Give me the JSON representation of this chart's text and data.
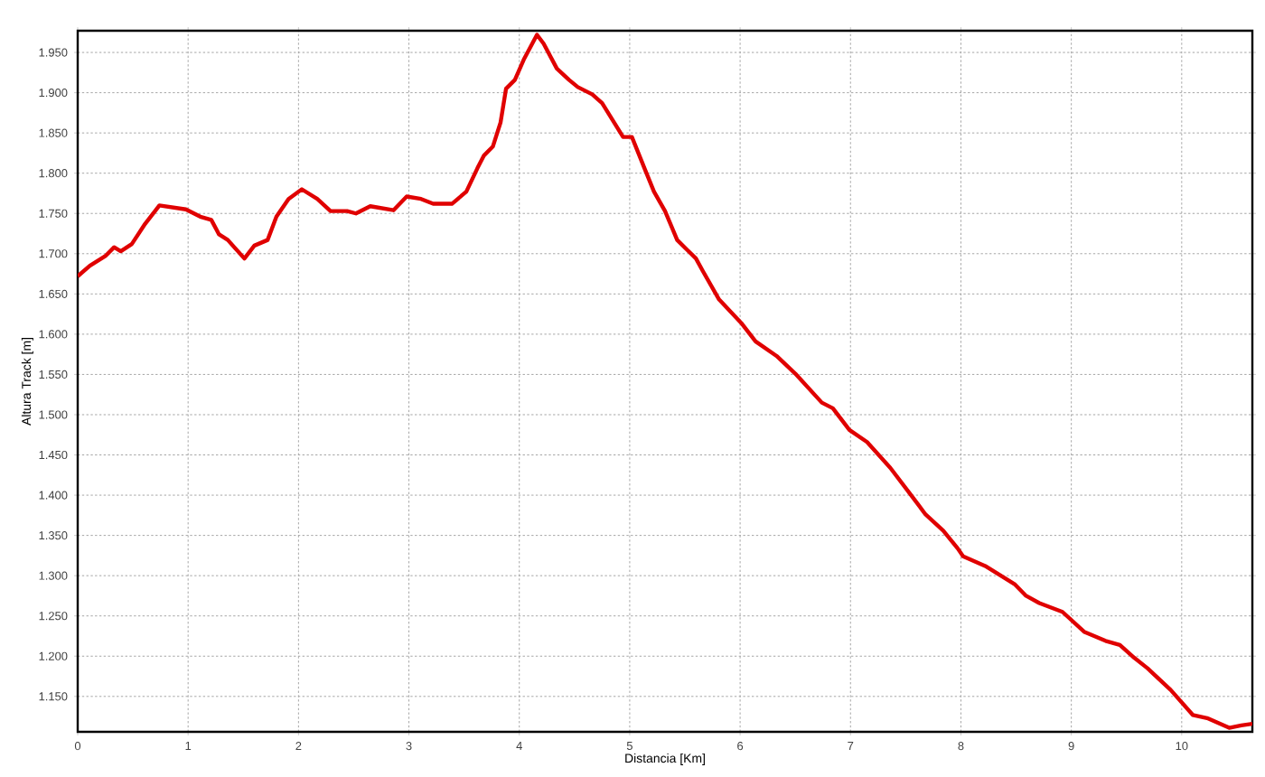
{
  "chart_data": {
    "type": "line",
    "xlabel": "Distancia [Km]",
    "ylabel": "Altura Track [m]",
    "color": "#e00000",
    "grid": true,
    "line_style": "solid",
    "xlim": [
      0,
      10.64
    ],
    "ylim": [
      1106,
      1977
    ],
    "xticks": [
      0,
      1,
      2,
      3,
      4,
      5,
      6,
      7,
      8,
      9,
      10
    ],
    "yticks": [
      {
        "value": 1150,
        "label": "1.150"
      },
      {
        "value": 1200,
        "label": "1.200"
      },
      {
        "value": 1250,
        "label": "1.250"
      },
      {
        "value": 1300,
        "label": "1.300"
      },
      {
        "value": 1350,
        "label": "1.350"
      },
      {
        "value": 1400,
        "label": "1.400"
      },
      {
        "value": 1450,
        "label": "1.450"
      },
      {
        "value": 1500,
        "label": "1.500"
      },
      {
        "value": 1550,
        "label": "1.550"
      },
      {
        "value": 1600,
        "label": "1.600"
      },
      {
        "value": 1650,
        "label": "1.650"
      },
      {
        "value": 1700,
        "label": "1.700"
      },
      {
        "value": 1750,
        "label": "1.750"
      },
      {
        "value": 1800,
        "label": "1.800"
      },
      {
        "value": 1850,
        "label": "1.850"
      },
      {
        "value": 1900,
        "label": "1.900"
      },
      {
        "value": 1950,
        "label": "1.950"
      }
    ],
    "x": [
      0,
      0.11,
      0.25,
      0.33,
      0.39,
      0.49,
      0.61,
      0.74,
      0.98,
      1.11,
      1.21,
      1.28,
      1.36,
      1.51,
      1.6,
      1.72,
      1.8,
      1.91,
      2.03,
      2.17,
      2.29,
      2.44,
      2.52,
      2.65,
      2.86,
      2.98,
      3.11,
      3.22,
      3.39,
      3.52,
      3.62,
      3.68,
      3.76,
      3.83,
      3.88,
      3.96,
      4.04,
      4.16,
      4.22,
      4.34,
      4.45,
      4.53,
      4.66,
      4.75,
      4.94,
      5.02,
      5.14,
      5.22,
      5.32,
      5.43,
      5.6,
      5.66,
      5.81,
      6.01,
      6.14,
      6.33,
      6.5,
      6.74,
      6.84,
      6.99,
      7.15,
      7.36,
      7.56,
      7.68,
      7.84,
      7.97,
      8.02,
      8.22,
      8.49,
      8.59,
      8.71,
      8.92,
      9.12,
      9.31,
      9.44,
      9.57,
      9.69,
      9.9,
      10.1,
      10.23,
      10.43,
      10.54,
      10.64
    ],
    "values": [
      1672,
      1685,
      1697,
      1708,
      1703,
      1712,
      1737,
      1760,
      1755,
      1746,
      1742,
      1724,
      1717,
      1694,
      1710,
      1717,
      1746,
      1768,
      1780,
      1768,
      1753,
      1753,
      1750,
      1759,
      1754,
      1771,
      1768,
      1762,
      1762,
      1777,
      1806,
      1822,
      1833,
      1863,
      1905,
      1916,
      1941,
      1972,
      1961,
      1930,
      1916,
      1907,
      1898,
      1887,
      1845,
      1845,
      1804,
      1777,
      1753,
      1717,
      1694,
      1679,
      1643,
      1614,
      1591,
      1573,
      1551,
      1515,
      1508,
      1481,
      1466,
      1434,
      1398,
      1376,
      1356,
      1334,
      1324,
      1312,
      1289,
      1275,
      1266,
      1255,
      1230,
      1219,
      1214,
      1198,
      1185,
      1158,
      1127,
      1123,
      1111,
      1114,
      1116
    ]
  }
}
